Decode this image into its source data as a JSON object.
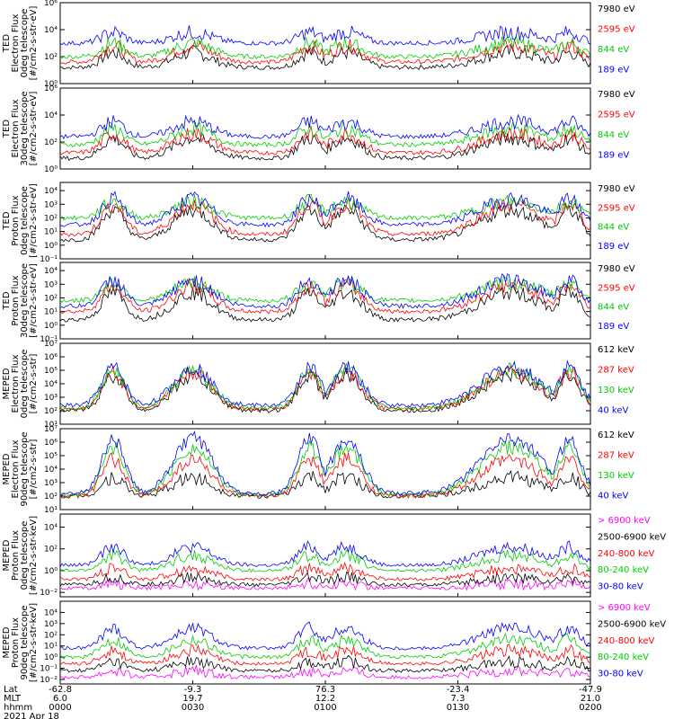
{
  "chart_data": [
    {
      "type": "line",
      "instrument": "TED",
      "ylabel": [
        "TED",
        "Electron Flux",
        "0deg telescope",
        "[#/cm2-s-str-eV]"
      ],
      "yticks": [
        {
          "exp": 0,
          "label": "10⁰"
        },
        {
          "exp": 2,
          "label": "10²"
        },
        {
          "exp": 4,
          "label": "10⁴"
        },
        {
          "exp": 6,
          "label": "10⁶"
        }
      ],
      "ylim_exp": [
        0,
        6
      ],
      "series": [
        {
          "name": "7980 eV",
          "color": "#000000",
          "base": 1.2,
          "peak": 2.3
        },
        {
          "name": "2595 eV",
          "color": "#ff0000",
          "base": 1.6,
          "peak": 2.8
        },
        {
          "name": "844 eV",
          "color": "#00cc00",
          "base": 2.0,
          "peak": 3.0
        },
        {
          "name": "189 eV",
          "color": "#0000ff",
          "base": 3.0,
          "peak": 3.8
        }
      ]
    },
    {
      "type": "line",
      "instrument": "TED",
      "ylabel": [
        "TED",
        "Electron Flux",
        "30deg telescope",
        "[#/cm2-s-str-eV]"
      ],
      "yticks": [
        {
          "exp": 0,
          "label": "10⁰"
        },
        {
          "exp": 2,
          "label": "10²"
        },
        {
          "exp": 4,
          "label": "10⁴"
        },
        {
          "exp": 6,
          "label": "10⁶"
        }
      ],
      "ylim_exp": [
        0,
        6
      ],
      "series": [
        {
          "name": "7980 eV",
          "color": "#000000",
          "base": 0.8,
          "peak": 2.3
        },
        {
          "name": "2595 eV",
          "color": "#ff0000",
          "base": 1.2,
          "peak": 2.6
        },
        {
          "name": "844 eV",
          "color": "#00cc00",
          "base": 1.8,
          "peak": 3.0
        },
        {
          "name": "189 eV",
          "color": "#0000ff",
          "base": 2.4,
          "peak": 3.5
        }
      ]
    },
    {
      "type": "line",
      "instrument": "TED",
      "ylabel": [
        "TED",
        "Proton Flux",
        "0deg telescope",
        "[#/cm2-s-str-eV]"
      ],
      "yticks": [
        {
          "exp": -1,
          "label": "10⁻¹"
        },
        {
          "exp": 0,
          "label": "10⁰"
        },
        {
          "exp": 1,
          "label": "10¹"
        },
        {
          "exp": 2,
          "label": "10²"
        },
        {
          "exp": 3,
          "label": "10³"
        },
        {
          "exp": 4,
          "label": "10⁴"
        }
      ],
      "ylim_exp": [
        -1,
        4.6
      ],
      "series": [
        {
          "name": "7980 eV",
          "color": "#000000",
          "base": 0.4,
          "peak": 2.6
        },
        {
          "name": "2595 eV",
          "color": "#ff0000",
          "base": 0.8,
          "peak": 3.0
        },
        {
          "name": "844 eV",
          "color": "#00cc00",
          "base": 2.0,
          "peak": 3.2
        },
        {
          "name": "189 eV",
          "color": "#0000ff",
          "base": 1.5,
          "peak": 3.4
        }
      ]
    },
    {
      "type": "line",
      "instrument": "TED",
      "ylabel": [
        "TED",
        "Proton Flux",
        "30deg telescope",
        "[#/cm2-s-str-eV]"
      ],
      "yticks": [
        {
          "exp": -1,
          "label": "10⁻¹"
        },
        {
          "exp": 0,
          "label": "10⁰"
        },
        {
          "exp": 1,
          "label": "10¹"
        },
        {
          "exp": 2,
          "label": "10²"
        },
        {
          "exp": 3,
          "label": "10³"
        },
        {
          "exp": 4,
          "label": "10⁴"
        }
      ],
      "ylim_exp": [
        -1,
        4.6
      ],
      "series": [
        {
          "name": "7980 eV",
          "color": "#000000",
          "base": 0.4,
          "peak": 2.4
        },
        {
          "name": "2595 eV",
          "color": "#ff0000",
          "base": 1.0,
          "peak": 2.9
        },
        {
          "name": "844 eV",
          "color": "#00cc00",
          "base": 1.8,
          "peak": 3.1
        },
        {
          "name": "189 eV",
          "color": "#0000ff",
          "base": 1.4,
          "peak": 3.3
        }
      ]
    },
    {
      "type": "line",
      "instrument": "MEPED",
      "ylabel": [
        "MEPED",
        "Electron Flux",
        "0deg telescope",
        "[#/cm2-s-str]"
      ],
      "yticks": [
        {
          "exp": 1,
          "label": "10¹"
        },
        {
          "exp": 2,
          "label": "10²"
        },
        {
          "exp": 3,
          "label": "10³"
        },
        {
          "exp": 4,
          "label": "10⁴"
        },
        {
          "exp": 5,
          "label": "10⁵"
        },
        {
          "exp": 6,
          "label": "10⁶"
        },
        {
          "exp": 7,
          "label": "10⁷"
        }
      ],
      "ylim_exp": [
        1,
        7
      ],
      "series": [
        {
          "name": "612 keV",
          "color": "#000000",
          "base": 2.0,
          "peak": 4.6
        },
        {
          "name": "287 keV",
          "color": "#ff0000",
          "base": 2.1,
          "peak": 4.8
        },
        {
          "name": "130 keV",
          "color": "#00cc00",
          "base": 2.2,
          "peak": 5.0
        },
        {
          "name": "40 keV",
          "color": "#0000ff",
          "base": 2.4,
          "peak": 5.2
        }
      ]
    },
    {
      "type": "line",
      "instrument": "MEPED",
      "ylabel": [
        "MEPED",
        "Electron Flux",
        "90deg telescope",
        "[#/cm2-s-str]"
      ],
      "yticks": [
        {
          "exp": 1,
          "label": "10¹"
        },
        {
          "exp": 2,
          "label": "10²"
        },
        {
          "exp": 3,
          "label": "10³"
        },
        {
          "exp": 4,
          "label": "10⁴"
        },
        {
          "exp": 5,
          "label": "10⁵"
        },
        {
          "exp": 6,
          "label": "10⁶"
        },
        {
          "exp": 7,
          "label": "10⁷"
        }
      ],
      "ylim_exp": [
        1,
        7
      ],
      "series": [
        {
          "name": "612 keV",
          "color": "#000000",
          "base": 2.0,
          "peak": 3.4
        },
        {
          "name": "287 keV",
          "color": "#ff0000",
          "base": 2.0,
          "peak": 4.7
        },
        {
          "name": "130 keV",
          "color": "#00cc00",
          "base": 2.1,
          "peak": 5.6
        },
        {
          "name": "40 keV",
          "color": "#0000ff",
          "base": 2.2,
          "peak": 6.3
        }
      ]
    },
    {
      "type": "line",
      "instrument": "MEPED",
      "ylabel": [
        "MEPED",
        "Proton Flux",
        "0deg telescope",
        "[#/cm2-s-str-keV]"
      ],
      "yticks": [
        {
          "exp": -2,
          "label": "10⁻²"
        },
        {
          "exp": 0,
          "label": "10⁰"
        },
        {
          "exp": 2,
          "label": "10²"
        },
        {
          "exp": 4,
          "label": "10⁴"
        }
      ],
      "ylim_exp": [
        -2.4,
        5.2
      ],
      "series": [
        {
          "name": "> 6900 keV",
          "color": "#ff00ff",
          "base": -1.6,
          "peak": -1.2
        },
        {
          "name": "2500-6900 keV",
          "color": "#000000",
          "base": -1.3,
          "peak": -0.6
        },
        {
          "name": "240-800 keV",
          "color": "#ff0000",
          "base": -0.8,
          "peak": 0.2
        },
        {
          "name": "80-240 keV",
          "color": "#00cc00",
          "base": 0.0,
          "peak": 1.4
        },
        {
          "name": "30-80 keV",
          "color": "#0000ff",
          "base": 0.5,
          "peak": 2.2
        }
      ]
    },
    {
      "type": "line",
      "instrument": "MEPED",
      "ylabel": [
        "MEPED",
        "Proton Flux",
        "90deg telescope",
        "[#/cm2-s-str-keV]"
      ],
      "yticks": [
        {
          "exp": -2,
          "label": "10⁻²"
        },
        {
          "exp": -1,
          "label": "10⁻¹"
        },
        {
          "exp": 0,
          "label": "10⁰"
        },
        {
          "exp": 1,
          "label": "10¹"
        },
        {
          "exp": 2,
          "label": "10²"
        },
        {
          "exp": 3,
          "label": "10³"
        },
        {
          "exp": 4,
          "label": "10⁴"
        }
      ],
      "ylim_exp": [
        -2.4,
        5.0
      ],
      "series": [
        {
          "name": "> 6900 keV",
          "color": "#ff00ff",
          "base": -1.8,
          "peak": -1.2
        },
        {
          "name": "2500-6900 keV",
          "color": "#000000",
          "base": -1.2,
          "peak": -0.4
        },
        {
          "name": "240-800 keV",
          "color": "#ff0000",
          "base": -0.6,
          "peak": 0.6
        },
        {
          "name": "80-240 keV",
          "color": "#00cc00",
          "base": 0.0,
          "peak": 1.6
        },
        {
          "name": "30-80 keV",
          "color": "#0000ff",
          "base": 0.8,
          "peak": 2.6
        }
      ]
    }
  ],
  "x_axis": {
    "row_labels": [
      "Lat",
      "MLT",
      "hhmm"
    ],
    "ticks": [
      {
        "Lat": "-62.8",
        "MLT": "6.0",
        "hhmm": "0000"
      },
      {
        "Lat": "-9.3",
        "MLT": "19.7",
        "hhmm": "0030"
      },
      {
        "Lat": "76.3",
        "MLT": "12.2",
        "hhmm": "0100"
      },
      {
        "Lat": "-23.4",
        "MLT": "7.3",
        "hhmm": "0130"
      },
      {
        "Lat": "-47.9",
        "MLT": "21.0",
        "hhmm": "0200"
      }
    ],
    "date": "2021 Apr 18"
  }
}
